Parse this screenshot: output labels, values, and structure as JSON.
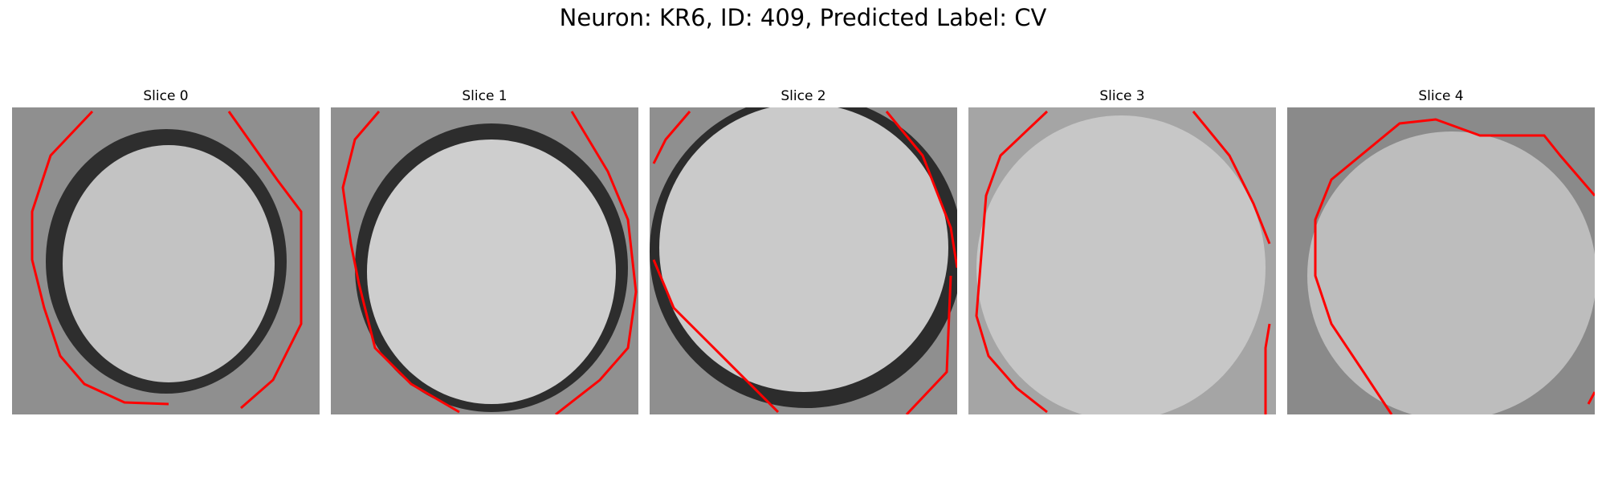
{
  "figure": {
    "title": "Neuron: KR6, ID: 409, Predicted Label: CV"
  },
  "panels": [
    {
      "title": "Slice 0"
    },
    {
      "title": "Slice 1"
    },
    {
      "title": "Slice 2"
    },
    {
      "title": "Slice 3"
    },
    {
      "title": "Slice 4"
    }
  ],
  "colors": {
    "contour": "#ff0000",
    "background": "#ffffff"
  }
}
